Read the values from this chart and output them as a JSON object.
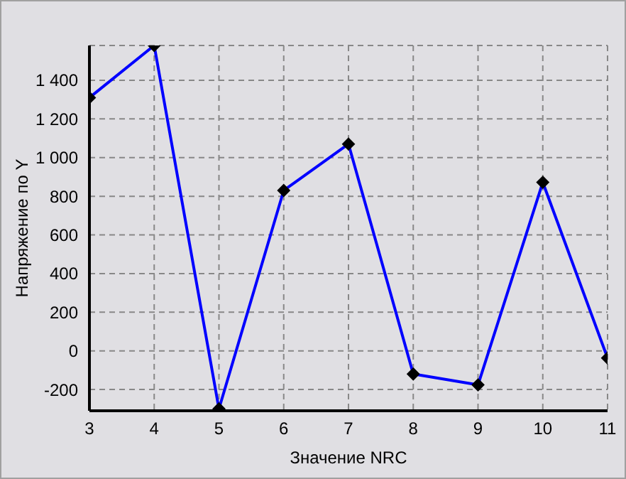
{
  "chart_data": {
    "type": "line",
    "xlabel": "Значение NRC",
    "ylabel": "Напряжение по Y",
    "x": [
      3,
      4,
      5,
      6,
      7,
      8,
      9,
      10,
      11
    ],
    "series": [
      {
        "color": "#0000ff",
        "values": [
          1310,
          1580,
          -300,
          830,
          1070,
          -120,
          -176,
          872,
          -37
        ]
      }
    ],
    "xlim": [
      3,
      11
    ],
    "xticks": [
      3,
      4,
      5,
      6,
      7,
      8,
      9,
      10,
      11
    ],
    "ylim": [
      -310,
      1580
    ],
    "yticks": [
      -200,
      0,
      200,
      400,
      600,
      800,
      {
        "value": 1000,
        "label": "1 000"
      },
      {
        "value": 1200,
        "label": "1 200"
      },
      {
        "value": 1400,
        "label": "1 400"
      }
    ],
    "grid": true,
    "marker": "diamond",
    "line_style": "solid",
    "legend": false
  }
}
